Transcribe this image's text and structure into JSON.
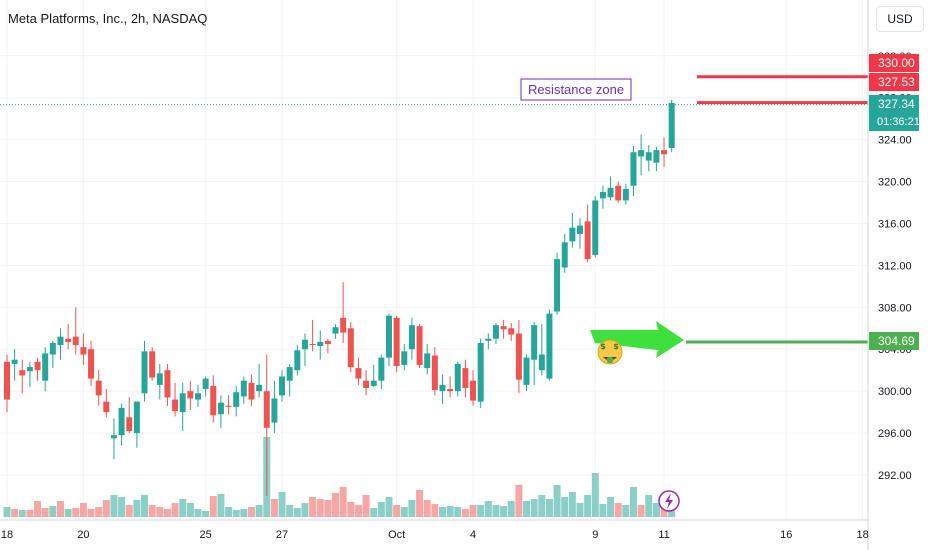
{
  "header": {
    "title": "Meta Platforms, Inc., 2h, NASDAQ",
    "currency": "USD"
  },
  "colors": {
    "up": "#26a69a",
    "down": "#ef5350",
    "vol_up": "#8ccfc8",
    "vol_down": "#f5a6a5",
    "resistance": "#f23645",
    "support": "#4caf50",
    "annotation": "#6f2dbd"
  },
  "chart_data": {
    "type": "candlestick",
    "title": "Meta Platforms, Inc., 2h, NASDAQ",
    "ylim": [
      288,
      333
    ],
    "y_ticks": [
      "292.00",
      "296.00",
      "300.00",
      "304.00",
      "308.00",
      "312.00",
      "316.00",
      "320.00",
      "324.00",
      "328.00",
      "332.00"
    ],
    "x_ticks": [
      "18",
      "20",
      "25",
      "27",
      "Oct",
      "4",
      "9",
      "11",
      "16",
      "18"
    ],
    "candles": [
      [
        302.8,
        303.5,
        298.0,
        299.2
      ],
      [
        302.6,
        304.0,
        301.0,
        303.0
      ],
      [
        302.0,
        303.0,
        299.8,
        301.5
      ],
      [
        301.9,
        302.8,
        300.4,
        302.3
      ],
      [
        302.8,
        303.2,
        301.0,
        302.0
      ],
      [
        301.0,
        304.2,
        300.0,
        303.6
      ],
      [
        303.5,
        304.8,
        302.2,
        304.6
      ],
      [
        304.4,
        306.0,
        303.0,
        305.2
      ],
      [
        305.0,
        306.4,
        304.0,
        304.7
      ],
      [
        305.2,
        308.0,
        303.5,
        304.4
      ],
      [
        304.2,
        305.5,
        302.5,
        303.5
      ],
      [
        304.0,
        304.8,
        300.5,
        301.2
      ],
      [
        301.0,
        302.0,
        298.6,
        299.6
      ],
      [
        299.0,
        300.2,
        297.5,
        298.0
      ],
      [
        295.5,
        297.4,
        293.5,
        295.8
      ],
      [
        295.8,
        298.8,
        294.8,
        298.4
      ],
      [
        297.5,
        299.4,
        296.0,
        296.2
      ],
      [
        296.0,
        299.0,
        294.6,
        299.0
      ],
      [
        299.8,
        304.8,
        299.0,
        303.8
      ],
      [
        303.8,
        304.2,
        301.0,
        301.3
      ],
      [
        300.6,
        302.6,
        299.2,
        301.7
      ],
      [
        302.0,
        302.6,
        298.6,
        299.4
      ],
      [
        299.2,
        300.8,
        297.6,
        298.1
      ],
      [
        298.0,
        300.8,
        296.2,
        299.8
      ],
      [
        300.0,
        301.0,
        298.2,
        299.3
      ],
      [
        299.2,
        300.6,
        298.5,
        299.8
      ],
      [
        300.2,
        301.4,
        299.5,
        301.2
      ],
      [
        300.5,
        301.5,
        297.0,
        297.7
      ],
      [
        297.8,
        299.6,
        296.5,
        298.9
      ],
      [
        298.6,
        299.6,
        297.8,
        298.5
      ],
      [
        298.5,
        300.5,
        297.6,
        299.9
      ],
      [
        299.5,
        301.4,
        298.8,
        301.0
      ],
      [
        300.8,
        301.6,
        298.6,
        299.2
      ],
      [
        300.0,
        302.6,
        299.4,
        300.6
      ],
      [
        300.0,
        303.5,
        290.0,
        296.5
      ],
      [
        297.0,
        301.0,
        296.0,
        299.3
      ],
      [
        299.6,
        302.0,
        299.0,
        301.4
      ],
      [
        301.0,
        302.6,
        299.5,
        302.3
      ],
      [
        302.0,
        304.4,
        301.5,
        303.9
      ],
      [
        304.0,
        305.5,
        302.4,
        304.9
      ],
      [
        304.5,
        306.8,
        303.8,
        304.4
      ],
      [
        304.3,
        305.8,
        303.0,
        304.7
      ],
      [
        304.8,
        305.0,
        303.6,
        304.5
      ],
      [
        305.5,
        306.4,
        305.0,
        306.1
      ],
      [
        307.0,
        310.4,
        304.6,
        305.6
      ],
      [
        306.0,
        306.6,
        301.8,
        302.3
      ],
      [
        302.2,
        303.2,
        300.6,
        301.2
      ],
      [
        301.0,
        302.0,
        299.6,
        300.3
      ],
      [
        300.5,
        302.5,
        300.4,
        301.0
      ],
      [
        301.0,
        303.5,
        300.2,
        303.2
      ],
      [
        303.2,
        307.4,
        302.4,
        307.2
      ],
      [
        307.0,
        307.2,
        301.8,
        302.4
      ],
      [
        302.5,
        304.5,
        302.0,
        303.8
      ],
      [
        304.0,
        307.0,
        303.0,
        306.3
      ],
      [
        306.2,
        306.4,
        302.2,
        302.5
      ],
      [
        302.2,
        304.5,
        301.6,
        303.6
      ],
      [
        303.4,
        304.2,
        299.6,
        300.1
      ],
      [
        300.0,
        301.6,
        298.8,
        300.6
      ],
      [
        300.2,
        301.4,
        299.4,
        300.0
      ],
      [
        300.0,
        302.8,
        299.5,
        302.6
      ],
      [
        302.2,
        303.0,
        299.4,
        300.3
      ],
      [
        301.0,
        302.0,
        298.6,
        299.1
      ],
      [
        299.0,
        305.0,
        298.4,
        304.6
      ],
      [
        304.8,
        305.5,
        304.0,
        305.0
      ],
      [
        305.0,
        306.5,
        304.5,
        306.3
      ],
      [
        306.2,
        306.8,
        305.0,
        305.9
      ],
      [
        306.0,
        306.5,
        304.8,
        305.4
      ],
      [
        305.5,
        306.8,
        299.8,
        301.1
      ],
      [
        300.6,
        303.5,
        300.0,
        303.2
      ],
      [
        303.0,
        306.6,
        300.6,
        306.3
      ],
      [
        302.0,
        306.4,
        301.5,
        303.5
      ],
      [
        301.2,
        307.8,
        301.0,
        307.4
      ],
      [
        307.6,
        313.2,
        307.3,
        312.6
      ],
      [
        311.8,
        315.0,
        311.3,
        314.2
      ],
      [
        314.3,
        317.0,
        313.7,
        315.6
      ],
      [
        315.0,
        316.5,
        313.6,
        315.8
      ],
      [
        316.2,
        317.8,
        312.3,
        312.6
      ],
      [
        313.0,
        318.6,
        312.8,
        318.2
      ],
      [
        318.4,
        319.6,
        317.4,
        319.0
      ],
      [
        318.5,
        320.5,
        318.2,
        319.4
      ],
      [
        319.6,
        320.0,
        318.0,
        318.2
      ],
      [
        318.2,
        319.8,
        317.8,
        319.3
      ],
      [
        319.6,
        323.4,
        318.6,
        322.8
      ],
      [
        322.4,
        324.5,
        320.6,
        323.0
      ],
      [
        322.0,
        323.5,
        321.0,
        322.8
      ],
      [
        321.8,
        323.3,
        321.0,
        323.0
      ],
      [
        323.0,
        324.2,
        321.4,
        322.6
      ],
      [
        323.2,
        327.8,
        322.8,
        327.5
      ]
    ],
    "volume": [
      [
        10,
        "up"
      ],
      [
        8,
        "down"
      ],
      [
        7,
        "up"
      ],
      [
        7,
        "down"
      ],
      [
        16,
        "down"
      ],
      [
        9,
        "down"
      ],
      [
        11,
        "up"
      ],
      [
        16,
        "down"
      ],
      [
        8,
        "up"
      ],
      [
        9,
        "down"
      ],
      [
        14,
        "down"
      ],
      [
        8,
        "down"
      ],
      [
        10,
        "down"
      ],
      [
        17,
        "down"
      ],
      [
        22,
        "up"
      ],
      [
        20,
        "up"
      ],
      [
        12,
        "down"
      ],
      [
        17,
        "up"
      ],
      [
        22,
        "up"
      ],
      [
        12,
        "down"
      ],
      [
        10,
        "down"
      ],
      [
        8,
        "down"
      ],
      [
        14,
        "down"
      ],
      [
        18,
        "up"
      ],
      [
        14,
        "up"
      ],
      [
        8,
        "up"
      ],
      [
        6,
        "up"
      ],
      [
        21,
        "down"
      ],
      [
        23,
        "up"
      ],
      [
        10,
        "up"
      ],
      [
        7,
        "up"
      ],
      [
        8,
        "up"
      ],
      [
        10,
        "down"
      ],
      [
        12,
        "up"
      ],
      [
        80,
        "up"
      ],
      [
        18,
        "down"
      ],
      [
        25,
        "up"
      ],
      [
        12,
        "up"
      ],
      [
        9,
        "up"
      ],
      [
        14,
        "up"
      ],
      [
        20,
        "down"
      ],
      [
        18,
        "down"
      ],
      [
        17,
        "down"
      ],
      [
        24,
        "down"
      ],
      [
        30,
        "down"
      ],
      [
        15,
        "down"
      ],
      [
        12,
        "down"
      ],
      [
        22,
        "down"
      ],
      [
        9,
        "up"
      ],
      [
        15,
        "up"
      ],
      [
        20,
        "up"
      ],
      [
        12,
        "down"
      ],
      [
        10,
        "up"
      ],
      [
        17,
        "up"
      ],
      [
        27,
        "down"
      ],
      [
        17,
        "down"
      ],
      [
        13,
        "down"
      ],
      [
        10,
        "up"
      ],
      [
        11,
        "up"
      ],
      [
        10,
        "up"
      ],
      [
        8,
        "down"
      ],
      [
        12,
        "down"
      ],
      [
        12,
        "up"
      ],
      [
        16,
        "up"
      ],
      [
        12,
        "up"
      ],
      [
        11,
        "up"
      ],
      [
        16,
        "up"
      ],
      [
        32,
        "down"
      ],
      [
        16,
        "up"
      ],
      [
        18,
        "up"
      ],
      [
        22,
        "up"
      ],
      [
        18,
        "up"
      ],
      [
        32,
        "up"
      ],
      [
        20,
        "up"
      ],
      [
        25,
        "up"
      ],
      [
        14,
        "up"
      ],
      [
        22,
        "up"
      ],
      [
        44,
        "up"
      ],
      [
        13,
        "up"
      ],
      [
        20,
        "up"
      ],
      [
        14,
        "down"
      ],
      [
        12,
        "up"
      ],
      [
        30,
        "up"
      ],
      [
        12,
        "down"
      ],
      [
        22,
        "up"
      ],
      [
        14,
        "up"
      ],
      [
        12,
        "down"
      ],
      [
        10,
        "up"
      ]
    ],
    "price_labels": [
      {
        "value": "330.00",
        "price": 330.0,
        "color": "#f23645"
      },
      {
        "value": "327.53",
        "price": 327.53,
        "color": "#f23645"
      },
      {
        "value": "327.34",
        "price": 327.34,
        "color": "#26a69a",
        "sub": "01:36:21"
      },
      {
        "value": "304.69",
        "price": 304.69,
        "color": "#4caf50"
      }
    ],
    "resistance_levels": [
      330.0,
      327.53
    ],
    "support_level": 304.69,
    "current_price": 327.34,
    "annotation": "Resistance zone"
  }
}
